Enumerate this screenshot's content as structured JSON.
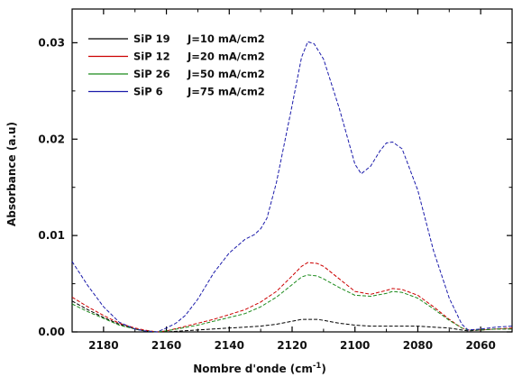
{
  "chart_data": {
    "type": "line",
    "xlabel": "Nombre d'onde (cm",
    "xlabel_sup": "-1",
    "xlabel_close": ")",
    "ylabel": "Absorbance (a.u)",
    "xlim": [
      2190,
      2050
    ],
    "ylim": [
      0,
      0.0335
    ],
    "x_reversed": true,
    "grid": false,
    "legend_position": "top-left",
    "x_ticks": [
      2180,
      2160,
      2140,
      2120,
      2100,
      2080,
      2060
    ],
    "x_tick_labels": [
      "2180",
      "2160",
      "2140",
      "2120",
      "2100",
      "2080",
      "2060"
    ],
    "y_ticks": [
      0,
      0.01,
      0.02,
      0.03
    ],
    "y_tick_labels": [
      "0.00",
      "0.01",
      "0.02",
      "0.03"
    ],
    "series": [
      {
        "name": "SiP 19",
        "label": "J=10 mA/cm2",
        "color": "#000000",
        "x": [
          2190,
          2185,
          2180,
          2175,
          2170,
          2167,
          2163,
          2160,
          2155,
          2150,
          2145,
          2140,
          2135,
          2130,
          2125,
          2120,
          2117,
          2115,
          2112,
          2110,
          2105,
          2100,
          2095,
          2090,
          2085,
          2080,
          2075,
          2070,
          2066,
          2064,
          2060,
          2055,
          2050
        ],
        "values": [
          0.0032,
          0.0023,
          0.0015,
          0.0008,
          0.0003,
          0.0001,
          0.0,
          0.0,
          0.0001,
          0.0002,
          0.0003,
          0.0004,
          0.0005,
          0.0006,
          0.0008,
          0.0011,
          0.0013,
          0.0013,
          0.0013,
          0.0012,
          0.0009,
          0.0007,
          0.0006,
          0.0006,
          0.0006,
          0.0006,
          0.0005,
          0.0004,
          0.0002,
          0.0001,
          0.0002,
          0.0003,
          0.0003
        ]
      },
      {
        "name": "SiP 12",
        "label": "J=20 mA/cm2",
        "color": "#cc0000",
        "x": [
          2190,
          2185,
          2180,
          2175,
          2170,
          2167,
          2163,
          2160,
          2155,
          2150,
          2145,
          2140,
          2135,
          2130,
          2125,
          2120,
          2117,
          2115,
          2112,
          2110,
          2105,
          2100,
          2095,
          2090,
          2088,
          2085,
          2080,
          2075,
          2070,
          2066,
          2064,
          2060,
          2055,
          2050
        ],
        "values": [
          0.0036,
          0.0026,
          0.0017,
          0.0009,
          0.0004,
          0.0002,
          0.0,
          0.0001,
          0.0005,
          0.0009,
          0.0013,
          0.0018,
          0.0023,
          0.0031,
          0.0042,
          0.0058,
          0.0068,
          0.0072,
          0.0071,
          0.0068,
          0.0055,
          0.0042,
          0.0039,
          0.0043,
          0.0045,
          0.0044,
          0.0038,
          0.0026,
          0.0013,
          0.0004,
          0.0002,
          0.0002,
          0.0003,
          0.0004
        ]
      },
      {
        "name": "SiP 26",
        "label": "J=50 mA/cm2",
        "color": "#1a8a1a",
        "x": [
          2190,
          2185,
          2180,
          2175,
          2170,
          2167,
          2163,
          2160,
          2155,
          2150,
          2145,
          2140,
          2135,
          2130,
          2125,
          2120,
          2117,
          2115,
          2112,
          2110,
          2105,
          2100,
          2095,
          2090,
          2088,
          2085,
          2080,
          2075,
          2070,
          2066,
          2064,
          2060,
          2055,
          2050
        ],
        "values": [
          0.0029,
          0.0021,
          0.0014,
          0.0007,
          0.0003,
          0.0001,
          0.0,
          0.0001,
          0.0004,
          0.0007,
          0.0011,
          0.0015,
          0.0019,
          0.0026,
          0.0036,
          0.0049,
          0.0057,
          0.0059,
          0.0058,
          0.0055,
          0.0046,
          0.0038,
          0.0037,
          0.004,
          0.0042,
          0.0041,
          0.0035,
          0.0024,
          0.0012,
          0.0004,
          0.0002,
          0.0002,
          0.0003,
          0.0003
        ]
      },
      {
        "name": "SiP 6",
        "label": "J=75 mA/cm2",
        "color": "#1a1aaa",
        "x": [
          2190,
          2185,
          2180,
          2175,
          2170,
          2167,
          2163,
          2160,
          2157,
          2154,
          2150,
          2145,
          2140,
          2135,
          2132,
          2130,
          2128,
          2125,
          2120,
          2117,
          2115,
          2113,
          2110,
          2105,
          2100,
          2098,
          2095,
          2092,
          2090,
          2088,
          2085,
          2080,
          2075,
          2070,
          2066,
          2064,
          2060,
          2055,
          2050
        ],
        "values": [
          0.0073,
          0.0048,
          0.0026,
          0.001,
          0.0003,
          0.0001,
          0.0,
          0.0004,
          0.0009,
          0.0017,
          0.0034,
          0.0061,
          0.0082,
          0.0096,
          0.0101,
          0.0107,
          0.0118,
          0.0155,
          0.0235,
          0.0285,
          0.0301,
          0.0299,
          0.0283,
          0.0232,
          0.0174,
          0.0164,
          0.0172,
          0.0188,
          0.0196,
          0.0197,
          0.019,
          0.0147,
          0.0084,
          0.0035,
          0.0008,
          0.0002,
          0.0003,
          0.0005,
          0.0006
        ]
      }
    ]
  }
}
